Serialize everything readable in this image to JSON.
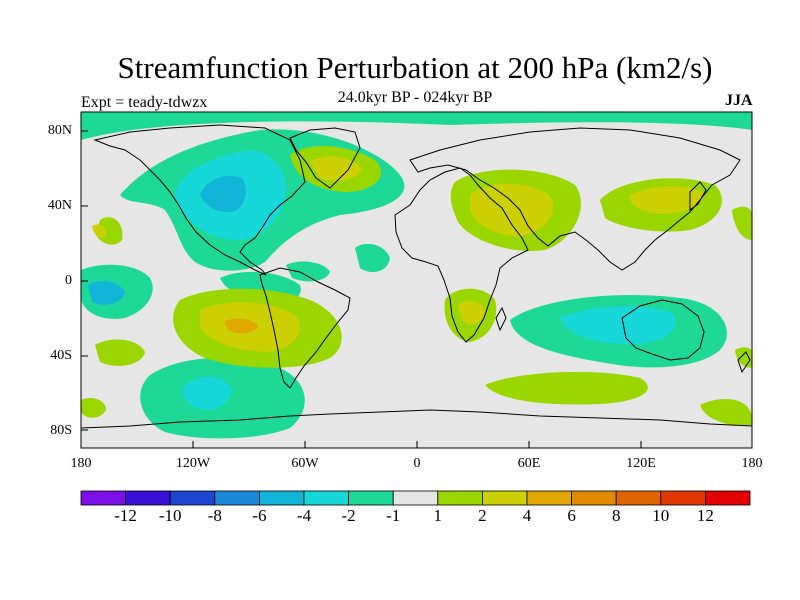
{
  "title": "Streamfunction Perturbation at 200 hPa (km2/s)",
  "experiment": "Expt = teady-tdwzx",
  "period": "24.0kyr BP - 024kyr BP",
  "season": "JJA",
  "map": {
    "lat_labels": [
      "80N",
      "40N",
      "0",
      "40S",
      "80S"
    ],
    "lon_labels": [
      "180",
      "120W",
      "60W",
      "0",
      "60E",
      "120E",
      "180"
    ]
  },
  "colorbar": {
    "colors": [
      "#7a0fe6",
      "#3a12d6",
      "#1e45d0",
      "#1b88d8",
      "#12b4d8",
      "#16d8d8",
      "#1ed898",
      "#e6e6e6",
      "#9ad600",
      "#ccd000",
      "#e0a800",
      "#e08a00",
      "#e06400",
      "#e03800",
      "#e30000"
    ],
    "labels": [
      "-12",
      "-10",
      "-8",
      "-6",
      "-4",
      "-2",
      "-1",
      "1",
      "2",
      "4",
      "6",
      "8",
      "10",
      "12"
    ]
  }
}
